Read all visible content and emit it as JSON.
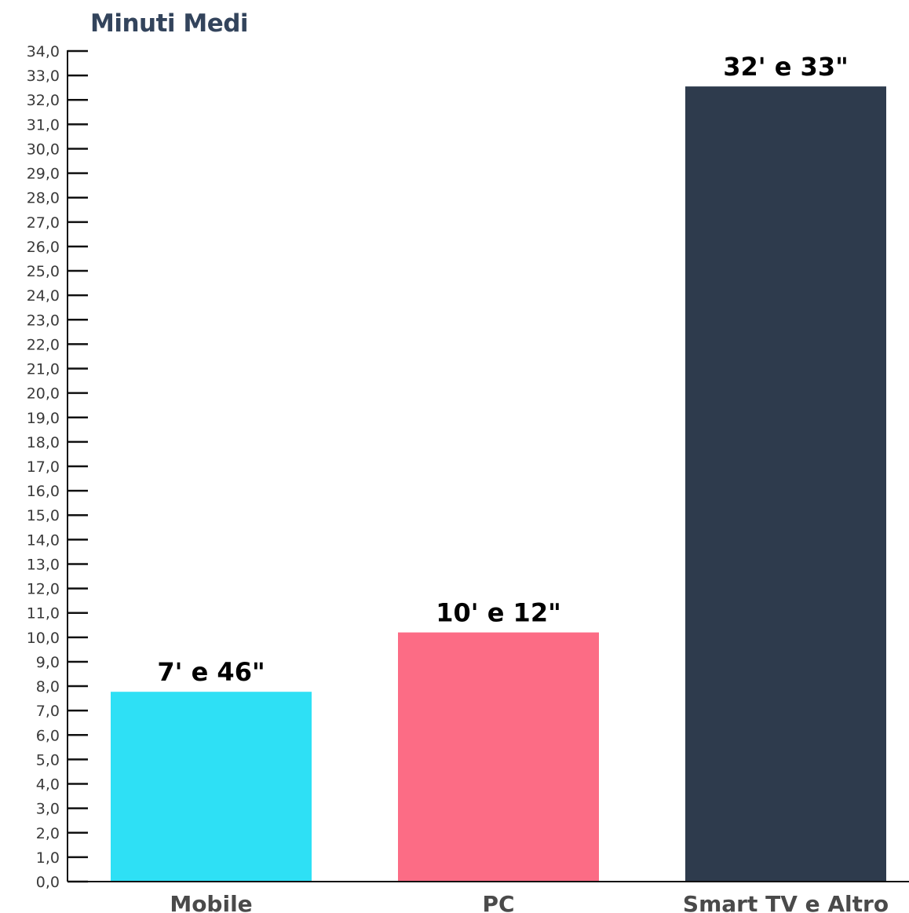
{
  "chart_data": {
    "type": "bar",
    "ylabel": "Minuti Medi",
    "xlabel": "",
    "categories": [
      "Mobile",
      "PC",
      "Smart TV e Altro"
    ],
    "values": [
      7.77,
      10.2,
      32.55
    ],
    "data_labels": [
      "7' e 46\"",
      "10' e 12\"",
      "32' e 33\""
    ],
    "colors": [
      "#2ee0f5",
      "#fc6c85",
      "#2e3b4d"
    ],
    "ylim": [
      0,
      34
    ],
    "ytick_step": 1,
    "ytick_labels": [
      "0,0",
      "1,0",
      "2,0",
      "3,0",
      "4,0",
      "5,0",
      "6,0",
      "7,0",
      "8,0",
      "9,0",
      "10,0",
      "11,0",
      "12,0",
      "13,0",
      "14,0",
      "15,0",
      "16,0",
      "17,0",
      "18,0",
      "19,0",
      "20,0",
      "21,0",
      "22,0",
      "23,0",
      "24,0",
      "25,0",
      "26,0",
      "27,0",
      "28,0",
      "29,0",
      "30,0",
      "31,0",
      "32,0",
      "33,0",
      "34,0"
    ],
    "grid": false,
    "legend": "none"
  }
}
